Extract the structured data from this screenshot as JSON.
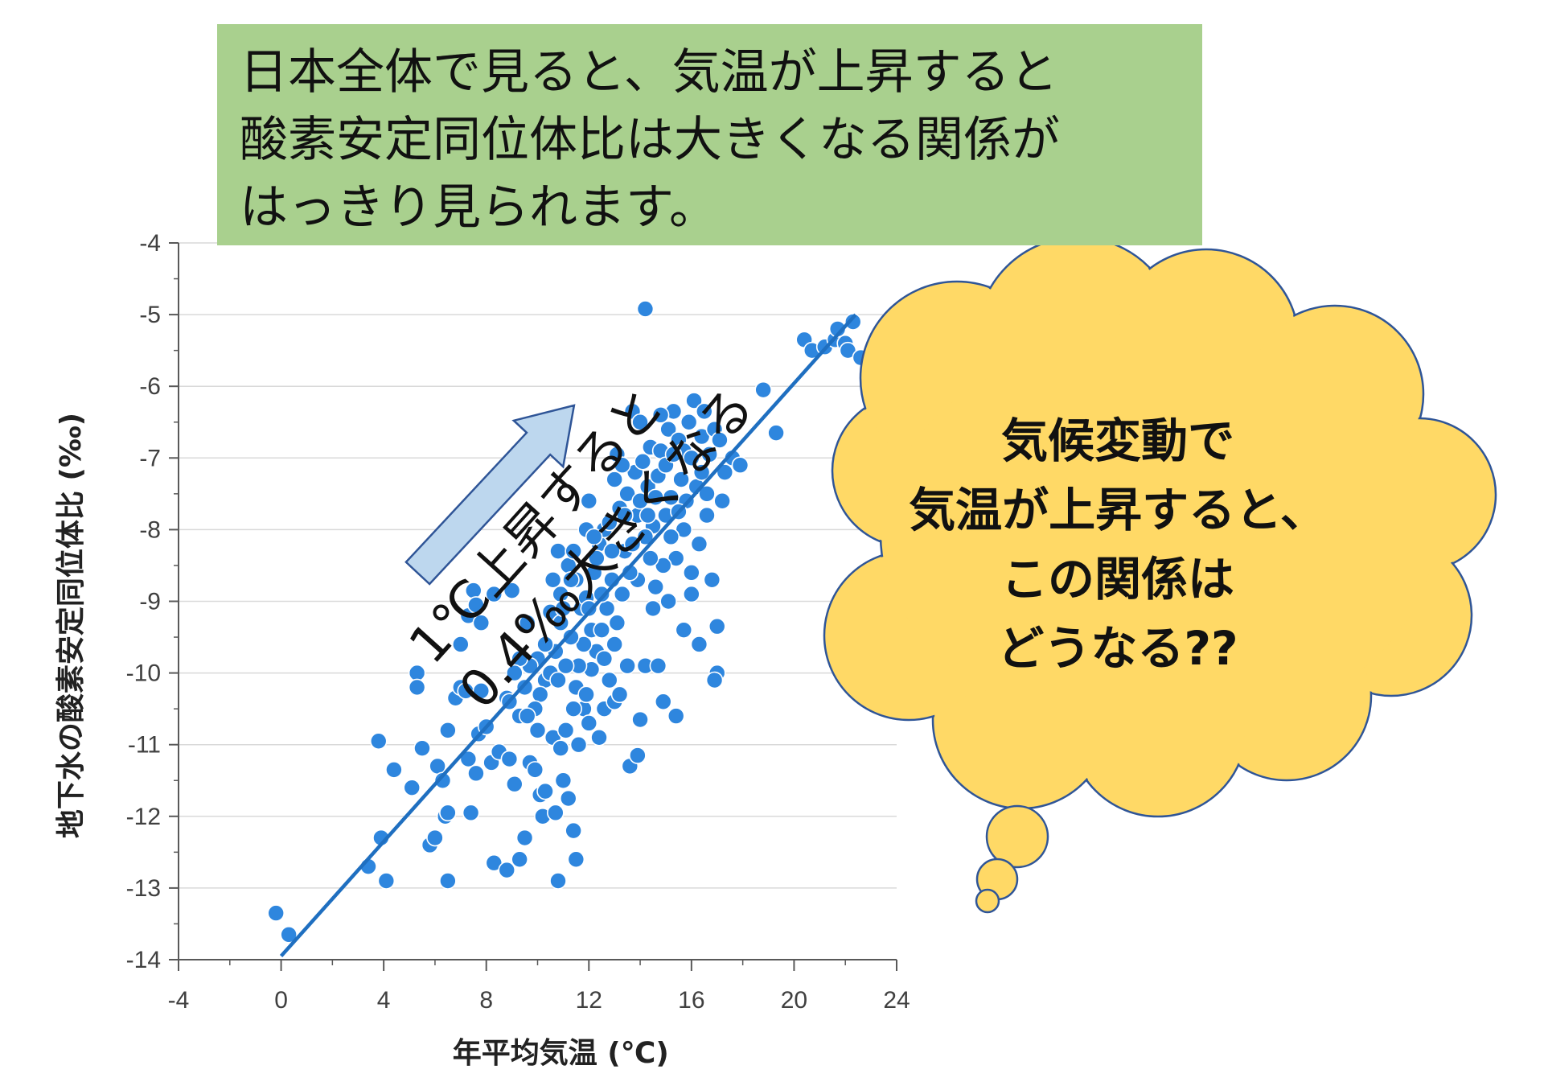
{
  "headline": {
    "lines": [
      "日本全体で見ると、気温が上昇すると",
      "酸素安定同位体比は大きくなる関係が",
      "はっきり見られます。"
    ]
  },
  "slope_annotation": {
    "lines": [
      "1℃上昇すると",
      "0.4‰大きくなる"
    ]
  },
  "thought_bubble": {
    "lines": [
      "気候変動で",
      "気温が上昇すると、",
      "この関係は",
      "どうなる??"
    ],
    "fill": "#ffd966",
    "stroke": "#2f5597"
  },
  "colors": {
    "points": "#2e86de",
    "point_edge": "#ffffff",
    "trendline": "#1f6fc0",
    "arrow_fill": "#bdd7ee",
    "arrow_stroke": "#2f5597",
    "grid": "#d9d9d9",
    "headline_bg": "#a9d08e"
  },
  "chart_data": {
    "type": "scatter",
    "xlabel": "年平均気温 (℃)",
    "ylabel": "地下水の酸素安定同位体比 (‰)",
    "xlim": [
      -4,
      24
    ],
    "ylim": [
      -14,
      -4
    ],
    "x_ticks": [
      "-4",
      "0",
      "4",
      "8",
      "12",
      "16",
      "20",
      "24"
    ],
    "y_ticks": [
      "-4",
      "-5",
      "-6",
      "-7",
      "-8",
      "-9",
      "-10",
      "-11",
      "-12",
      "-13",
      "-14"
    ],
    "grid": "horizontal",
    "trendline": {
      "x": [
        0,
        22.4
      ],
      "y": [
        -13.95,
        -5.0
      ]
    },
    "points": [
      [
        -0.2,
        -13.35
      ],
      [
        0.3,
        -13.65
      ],
      [
        3.4,
        -12.7
      ],
      [
        3.9,
        -12.3
      ],
      [
        4.1,
        -12.9
      ],
      [
        3.8,
        -10.95
      ],
      [
        4.4,
        -11.35
      ],
      [
        5.1,
        -11.6
      ],
      [
        5.3,
        -10.0
      ],
      [
        5.3,
        -10.2
      ],
      [
        5.5,
        -11.05
      ],
      [
        5.8,
        -12.4
      ],
      [
        6.0,
        -12.3
      ],
      [
        6.1,
        -11.3
      ],
      [
        6.3,
        -11.5
      ],
      [
        6.5,
        -12.9
      ],
      [
        6.4,
        -12.0
      ],
      [
        6.5,
        -11.95
      ],
      [
        6.5,
        -10.8
      ],
      [
        6.8,
        -10.35
      ],
      [
        7.0,
        -9.6
      ],
      [
        7.0,
        -10.2
      ],
      [
        7.2,
        -10.25
      ],
      [
        7.3,
        -9.2
      ],
      [
        7.5,
        -8.85
      ],
      [
        7.6,
        -9.05
      ],
      [
        7.8,
        -9.3
      ],
      [
        7.3,
        -11.2
      ],
      [
        7.4,
        -11.95
      ],
      [
        7.6,
        -11.4
      ],
      [
        7.7,
        -10.85
      ],
      [
        7.8,
        -10.25
      ],
      [
        8.0,
        -10.75
      ],
      [
        8.2,
        -11.25
      ],
      [
        8.3,
        -12.65
      ],
      [
        8.5,
        -11.1
      ],
      [
        8.3,
        -8.9
      ],
      [
        8.8,
        -12.75
      ],
      [
        9.0,
        -8.85
      ],
      [
        8.8,
        -10.35
      ],
      [
        8.9,
        -11.2
      ],
      [
        9.1,
        -11.55
      ],
      [
        9.3,
        -10.6
      ],
      [
        9.3,
        -12.6
      ],
      [
        9.5,
        -12.3
      ],
      [
        9.6,
        -9.3
      ],
      [
        9.7,
        -11.25
      ],
      [
        9.9,
        -11.35
      ],
      [
        10.0,
        -9.8
      ],
      [
        10.1,
        -11.7
      ],
      [
        10.2,
        -12.0
      ],
      [
        10.3,
        -10.1
      ],
      [
        10.3,
        -11.65
      ],
      [
        10.5,
        -9.15
      ],
      [
        10.6,
        -10.9
      ],
      [
        10.7,
        -11.95
      ],
      [
        10.8,
        -12.9
      ],
      [
        10.9,
        -11.05
      ],
      [
        11.0,
        -11.5
      ],
      [
        11.1,
        -10.8
      ],
      [
        11.2,
        -11.75
      ],
      [
        11.4,
        -12.2
      ],
      [
        11.5,
        -10.2
      ],
      [
        11.5,
        -12.6
      ],
      [
        11.6,
        -11.0
      ],
      [
        11.8,
        -10.5
      ],
      [
        12.0,
        -10.7
      ],
      [
        12.1,
        -9.4
      ],
      [
        12.4,
        -10.9
      ],
      [
        12.6,
        -10.5
      ],
      [
        12.8,
        -10.1
      ],
      [
        13.0,
        -10.4
      ],
      [
        13.2,
        -10.3
      ],
      [
        13.6,
        -11.3
      ],
      [
        13.9,
        -11.15
      ],
      [
        14.0,
        -10.65
      ],
      [
        14.2,
        -9.9
      ],
      [
        14.5,
        -9.1
      ],
      [
        14.7,
        -9.9
      ],
      [
        14.9,
        -10.4
      ],
      [
        15.1,
        -9.0
      ],
      [
        15.4,
        -10.6
      ],
      [
        15.7,
        -9.4
      ],
      [
        16.0,
        -8.9
      ],
      [
        16.3,
        -9.6
      ],
      [
        16.8,
        -8.7
      ],
      [
        17.0,
        -9.35
      ],
      [
        17.0,
        -10.0
      ],
      [
        16.9,
        -10.1
      ],
      [
        17.2,
        -7.6
      ],
      [
        17.6,
        -7.0
      ],
      [
        17.9,
        -7.1
      ],
      [
        18.8,
        -6.05
      ],
      [
        19.3,
        -6.65
      ],
      [
        20.4,
        -5.35
      ],
      [
        20.7,
        -5.5
      ],
      [
        21.2,
        -5.45
      ],
      [
        21.6,
        -5.35
      ],
      [
        21.7,
        -5.2
      ],
      [
        22.0,
        -5.4
      ],
      [
        22.1,
        -5.5
      ],
      [
        22.3,
        -5.1
      ],
      [
        22.6,
        -5.6
      ],
      [
        14.2,
        -4.92
      ],
      [
        12.0,
        -7.6
      ],
      [
        11.9,
        -8.0
      ],
      [
        10.8,
        -8.3
      ],
      [
        11.2,
        -8.5
      ],
      [
        11.5,
        -8.7
      ],
      [
        11.7,
        -9.1
      ],
      [
        11.9,
        -8.95
      ],
      [
        12.2,
        -8.6
      ],
      [
        12.4,
        -8.2
      ],
      [
        12.6,
        -8.0
      ],
      [
        12.8,
        -7.9
      ],
      [
        13.0,
        -7.3
      ],
      [
        13.1,
        -6.95
      ],
      [
        13.2,
        -7.7
      ],
      [
        13.4,
        -8.3
      ],
      [
        13.5,
        -7.5
      ],
      [
        13.7,
        -6.35
      ],
      [
        13.8,
        -7.2
      ],
      [
        13.9,
        -7.8
      ],
      [
        14.0,
        -6.5
      ],
      [
        14.1,
        -7.05
      ],
      [
        14.3,
        -7.4
      ],
      [
        14.4,
        -6.85
      ],
      [
        14.5,
        -7.95
      ],
      [
        14.7,
        -7.25
      ],
      [
        14.8,
        -6.9
      ],
      [
        15.0,
        -7.1
      ],
      [
        15.1,
        -6.6
      ],
      [
        15.2,
        -7.55
      ],
      [
        15.3,
        -6.35
      ],
      [
        15.5,
        -6.75
      ],
      [
        15.6,
        -7.3
      ],
      [
        15.7,
        -6.9
      ],
      [
        15.9,
        -6.5
      ],
      [
        16.0,
        -7.0
      ],
      [
        16.1,
        -6.2
      ],
      [
        16.2,
        -7.4
      ],
      [
        16.4,
        -6.7
      ],
      [
        16.5,
        -6.35
      ],
      [
        16.6,
        -7.8
      ],
      [
        16.7,
        -6.95
      ],
      [
        16.9,
        -6.6
      ],
      [
        17.1,
        -6.75
      ],
      [
        17.3,
        -7.2
      ],
      [
        16.3,
        -8.2
      ],
      [
        16.0,
        -8.6
      ],
      [
        15.7,
        -8.0
      ],
      [
        15.4,
        -8.4
      ],
      [
        15.2,
        -8.1
      ],
      [
        14.9,
        -8.5
      ],
      [
        14.6,
        -8.8
      ],
      [
        14.4,
        -8.4
      ],
      [
        14.2,
        -8.1
      ],
      [
        13.9,
        -8.7
      ],
      [
        13.6,
        -8.6
      ],
      [
        13.3,
        -8.9
      ],
      [
        13.1,
        -9.3
      ],
      [
        12.9,
        -8.7
      ],
      [
        12.7,
        -9.1
      ],
      [
        12.5,
        -9.4
      ],
      [
        12.3,
        -9.7
      ],
      [
        12.1,
        -9.95
      ],
      [
        11.8,
        -9.6
      ],
      [
        11.6,
        -9.9
      ],
      [
        11.3,
        -9.5
      ],
      [
        11.1,
        -9.9
      ],
      [
        10.9,
        -9.3
      ],
      [
        10.7,
        -9.7
      ],
      [
        10.5,
        -10.0
      ],
      [
        10.3,
        -9.6
      ],
      [
        10.1,
        -10.3
      ],
      [
        9.9,
        -10.5
      ],
      [
        9.7,
        -9.9
      ],
      [
        9.5,
        -10.2
      ],
      [
        9.3,
        -9.8
      ],
      [
        9.1,
        -10.0
      ],
      [
        8.9,
        -10.4
      ],
      [
        10.6,
        -8.7
      ],
      [
        10.9,
        -8.9
      ],
      [
        11.4,
        -8.3
      ],
      [
        12.3,
        -8.4
      ],
      [
        12.9,
        -8.3
      ],
      [
        13.4,
        -7.8
      ],
      [
        14.0,
        -7.6
      ],
      [
        14.6,
        -7.55
      ],
      [
        15.0,
        -7.8
      ],
      [
        15.8,
        -7.6
      ],
      [
        16.4,
        -7.2
      ],
      [
        15.3,
        -6.95
      ],
      [
        14.8,
        -6.4
      ],
      [
        13.5,
        -9.9
      ],
      [
        13.0,
        -9.6
      ],
      [
        12.6,
        -9.8
      ],
      [
        11.9,
        -10.3
      ],
      [
        11.4,
        -10.5
      ],
      [
        10.8,
        -10.1
      ],
      [
        10.0,
        -10.8
      ],
      [
        9.6,
        -10.6
      ],
      [
        12.0,
        -9.1
      ],
      [
        11.0,
        -9.1
      ],
      [
        11.3,
        -8.7
      ],
      [
        12.5,
        -8.9
      ],
      [
        13.7,
        -8.2
      ],
      [
        14.3,
        -7.8
      ],
      [
        15.5,
        -7.75
      ],
      [
        16.6,
        -7.5
      ],
      [
        12.2,
        -8.1
      ],
      [
        13.3,
        -7.1
      ]
    ]
  }
}
